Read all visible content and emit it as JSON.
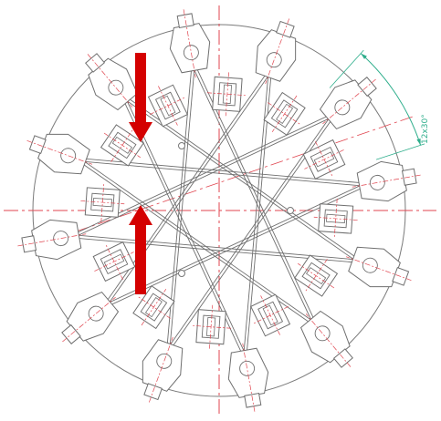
{
  "drawing": {
    "dimension_label": "12x30°",
    "fixture_count": 12,
    "star_order": 5,
    "colors": {
      "line": "#6f6f6f",
      "centerline": "#e0454f",
      "dimension": "#2fae8c",
      "arrow": "#d40000",
      "background": "#ffffff"
    }
  }
}
